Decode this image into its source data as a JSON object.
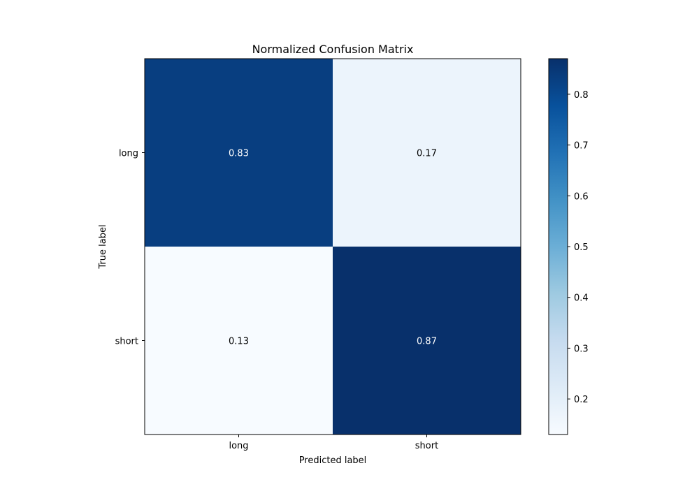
{
  "chart_data": {
    "type": "heatmap",
    "title": "Normalized Confusion Matrix",
    "xlabel": "Predicted label",
    "ylabel": "True label",
    "x_categories": [
      "long",
      "short"
    ],
    "y_categories": [
      "long",
      "short"
    ],
    "values": [
      [
        0.83,
        0.17
      ],
      [
        0.13,
        0.87
      ]
    ],
    "value_labels": [
      [
        "0.83",
        "0.17"
      ],
      [
        "0.13",
        "0.87"
      ]
    ],
    "colormap": "Blues",
    "colorbar": {
      "range": [
        0.13,
        0.87
      ],
      "ticks": [
        0.2,
        0.3,
        0.4,
        0.5,
        0.6,
        0.7,
        0.8
      ],
      "tick_labels": [
        "0.2",
        "0.3",
        "0.4",
        "0.5",
        "0.6",
        "0.7",
        "0.8"
      ]
    },
    "colors": {
      "low": "#f7fbff",
      "high": "#08306b",
      "text_dark": "#000000",
      "text_light": "#ffffff"
    }
  }
}
